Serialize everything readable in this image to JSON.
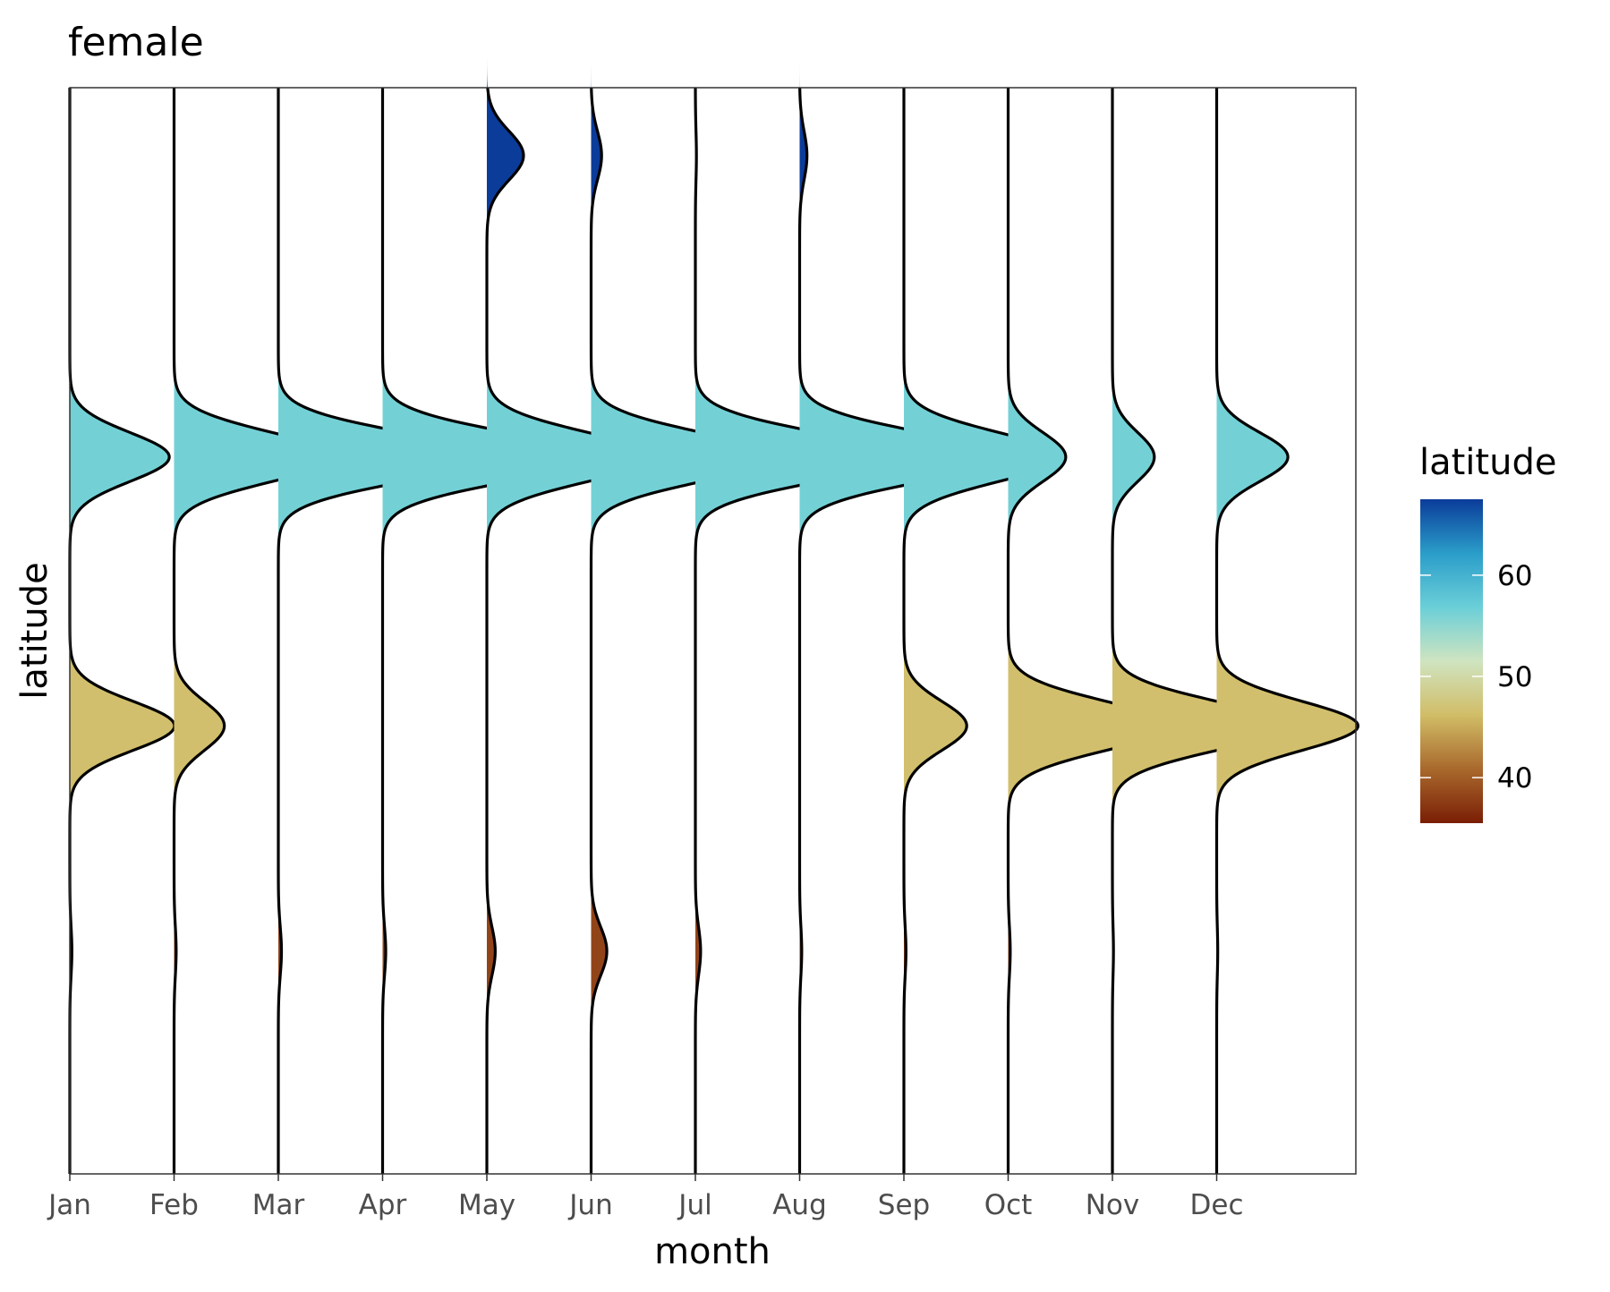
{
  "chart_data": {
    "type": "area",
    "subtype": "horizontal ridgeline (violin-style density curves per month)",
    "title": "female",
    "xlabel": "month",
    "ylabel": "latitude",
    "categories": [
      "Jan",
      "Feb",
      "Mar",
      "Apr",
      "May",
      "Jun",
      "Jul",
      "Aug",
      "Sep",
      "Oct",
      "Nov",
      "Dec"
    ],
    "ylim": [
      30,
      70
    ],
    "y_ticks_shown": false,
    "legend": {
      "title": "latitude",
      "type": "colorbar",
      "placement": "right",
      "range": [
        35.5,
        67.5
      ],
      "ticks": [
        40,
        50,
        60
      ],
      "colors": [
        "#7a1e05",
        "#a9692c",
        "#d1bd67",
        "#cfe4c0",
        "#6bcfd8",
        "#2a9dc9",
        "#0b3c9a"
      ]
    },
    "grid": false,
    "peaks": {
      "Jan": [
        {
          "lat": 56.4,
          "height": 0.95
        },
        {
          "lat": 46.5,
          "height": 1.0
        },
        {
          "lat": 38.2,
          "height": 0.02
        }
      ],
      "Feb": [
        {
          "lat": 56.4,
          "height": 1.55
        },
        {
          "lat": 46.5,
          "height": 0.48
        },
        {
          "lat": 38.2,
          "height": 0.02
        }
      ],
      "Mar": [
        {
          "lat": 56.4,
          "height": 2.0
        },
        {
          "lat": 38.2,
          "height": 0.03
        }
      ],
      "Apr": [
        {
          "lat": 56.4,
          "height": 2.0
        },
        {
          "lat": 38.2,
          "height": 0.03
        }
      ],
      "May": [
        {
          "lat": 67.5,
          "height": 0.35
        },
        {
          "lat": 56.4,
          "height": 1.6
        },
        {
          "lat": 38.2,
          "height": 0.08
        }
      ],
      "Jun": [
        {
          "lat": 67.5,
          "height": 0.1
        },
        {
          "lat": 56.4,
          "height": 1.75
        },
        {
          "lat": 38.2,
          "height": 0.15
        }
      ],
      "Jul": [
        {
          "lat": 67.5,
          "height": 0.01
        },
        {
          "lat": 56.4,
          "height": 1.95
        },
        {
          "lat": 38.2,
          "height": 0.05
        }
      ],
      "Aug": [
        {
          "lat": 67.5,
          "height": 0.07
        },
        {
          "lat": 56.4,
          "height": 1.95
        },
        {
          "lat": 38.2,
          "height": 0.02
        }
      ],
      "Sep": [
        {
          "lat": 56.4,
          "height": 1.5
        },
        {
          "lat": 46.5,
          "height": 0.6
        },
        {
          "lat": 38.2,
          "height": 0.02
        }
      ],
      "Oct": [
        {
          "lat": 56.4,
          "height": 0.55
        },
        {
          "lat": 46.5,
          "height": 1.55
        },
        {
          "lat": 38.2,
          "height": 0.02
        }
      ],
      "Nov": [
        {
          "lat": 56.4,
          "height": 0.4
        },
        {
          "lat": 46.5,
          "height": 1.65
        },
        {
          "lat": 38.2,
          "height": 0.01
        }
      ],
      "Dec": [
        {
          "lat": 56.4,
          "height": 0.68
        },
        {
          "lat": 46.5,
          "height": 1.35
        },
        {
          "lat": 38.2,
          "height": 0.01
        }
      ]
    }
  }
}
